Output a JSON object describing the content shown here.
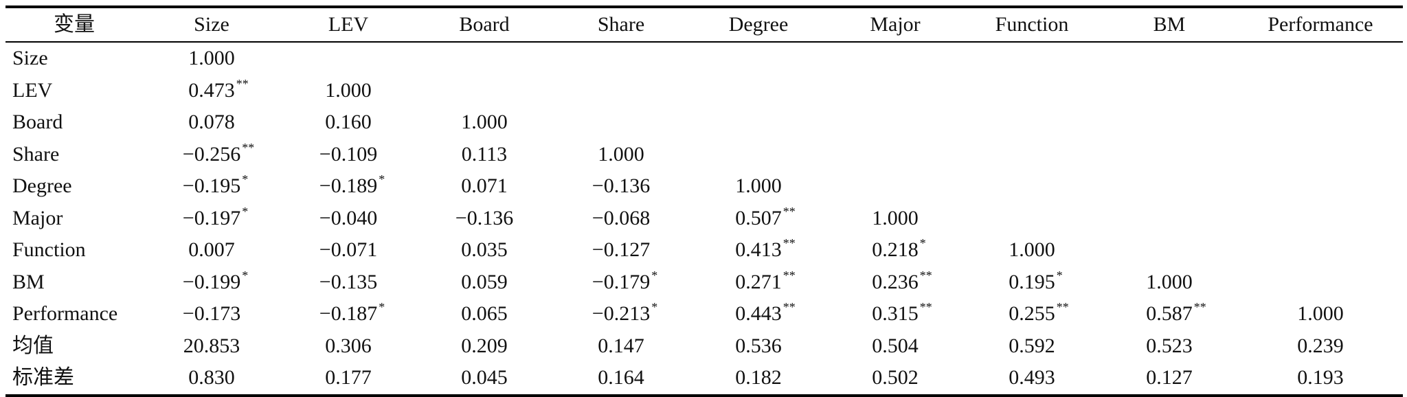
{
  "table": {
    "headers": [
      "变量",
      "Size",
      "LEV",
      "Board",
      "Share",
      "Degree",
      "Major",
      "Function",
      "BM",
      "Performance"
    ],
    "rows": [
      {
        "label": "Size",
        "cells": [
          [
            "1.000",
            ""
          ]
        ]
      },
      {
        "label": "LEV",
        "cells": [
          [
            "0.473",
            "**"
          ],
          [
            "1.000",
            ""
          ]
        ]
      },
      {
        "label": "Board",
        "cells": [
          [
            "0.078",
            ""
          ],
          [
            "0.160",
            ""
          ],
          [
            "1.000",
            ""
          ]
        ]
      },
      {
        "label": "Share",
        "cells": [
          [
            "−0.256",
            "**"
          ],
          [
            "−0.109",
            ""
          ],
          [
            "0.113",
            ""
          ],
          [
            "1.000",
            ""
          ]
        ]
      },
      {
        "label": "Degree",
        "cells": [
          [
            "−0.195",
            "*"
          ],
          [
            "−0.189",
            "*"
          ],
          [
            "0.071",
            ""
          ],
          [
            "−0.136",
            ""
          ],
          [
            "1.000",
            ""
          ]
        ]
      },
      {
        "label": "Major",
        "cells": [
          [
            "−0.197",
            "*"
          ],
          [
            "−0.040",
            ""
          ],
          [
            "−0.136",
            ""
          ],
          [
            "−0.068",
            ""
          ],
          [
            "0.507",
            "**"
          ],
          [
            "1.000",
            ""
          ]
        ]
      },
      {
        "label": "Function",
        "cells": [
          [
            "0.007",
            ""
          ],
          [
            "−0.071",
            ""
          ],
          [
            "0.035",
            ""
          ],
          [
            "−0.127",
            ""
          ],
          [
            "0.413",
            "**"
          ],
          [
            "0.218",
            "*"
          ],
          [
            "1.000",
            ""
          ]
        ]
      },
      {
        "label": "BM",
        "cells": [
          [
            "−0.199",
            "*"
          ],
          [
            "−0.135",
            ""
          ],
          [
            "0.059",
            ""
          ],
          [
            "−0.179",
            "*"
          ],
          [
            "0.271",
            "**"
          ],
          [
            "0.236",
            "**"
          ],
          [
            "0.195",
            "*"
          ],
          [
            "1.000",
            ""
          ]
        ]
      },
      {
        "label": "Performance",
        "cells": [
          [
            "−0.173",
            ""
          ],
          [
            "−0.187",
            "*"
          ],
          [
            "0.065",
            ""
          ],
          [
            "−0.213",
            "*"
          ],
          [
            "0.443",
            "**"
          ],
          [
            "0.315",
            "**"
          ],
          [
            "0.255",
            "**"
          ],
          [
            "0.587",
            "**"
          ],
          [
            "1.000",
            ""
          ]
        ]
      },
      {
        "label": "均值",
        "cells": [
          [
            "20.853",
            ""
          ],
          [
            "0.306",
            ""
          ],
          [
            "0.209",
            ""
          ],
          [
            "0.147",
            ""
          ],
          [
            "0.536",
            ""
          ],
          [
            "0.504",
            ""
          ],
          [
            "0.592",
            ""
          ],
          [
            "0.523",
            ""
          ],
          [
            "0.239",
            ""
          ]
        ]
      },
      {
        "label": "标准差",
        "cells": [
          [
            "0.830",
            ""
          ],
          [
            "0.177",
            ""
          ],
          [
            "0.045",
            ""
          ],
          [
            "0.164",
            ""
          ],
          [
            "0.182",
            ""
          ],
          [
            "0.502",
            ""
          ],
          [
            "0.493",
            ""
          ],
          [
            "0.127",
            ""
          ],
          [
            "0.193",
            ""
          ]
        ]
      }
    ]
  }
}
